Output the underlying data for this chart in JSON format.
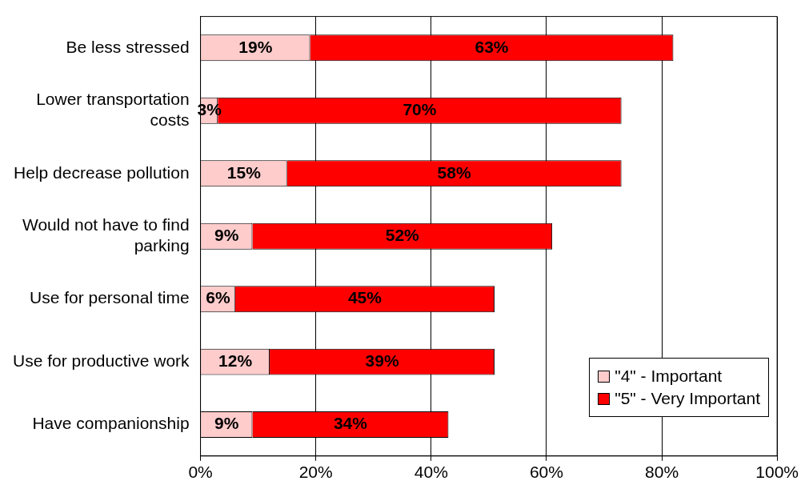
{
  "chart_data": {
    "type": "bar",
    "orientation": "horizontal",
    "stacked": true,
    "categories": [
      "Be less stressed",
      "Lower transportation costs",
      "Help decrease pollution",
      "Would not have to find parking",
      "Use for personal time",
      "Use for productive work",
      "Have companionship"
    ],
    "series": [
      {
        "name": "\"4\" - Important",
        "color": "#ffcccc",
        "values": [
          19,
          3,
          15,
          9,
          6,
          12,
          9
        ],
        "value_labels": [
          "19%",
          "3%",
          "15%",
          "9%",
          "6%",
          "12%",
          "9%"
        ]
      },
      {
        "name": "\"5\" - Very Important",
        "color": "#ff0000",
        "values": [
          63,
          70,
          58,
          52,
          45,
          39,
          34
        ],
        "value_labels": [
          "63%",
          "70%",
          "58%",
          "52%",
          "45%",
          "39%",
          "34%"
        ]
      }
    ],
    "xlim": [
      0,
      100
    ],
    "xticks": [
      {
        "value": 0,
        "label": "0%"
      },
      {
        "value": 20,
        "label": "20%"
      },
      {
        "value": 40,
        "label": "40%"
      },
      {
        "value": 60,
        "label": "60%"
      },
      {
        "value": 80,
        "label": "80%"
      },
      {
        "value": 100,
        "label": "100%"
      }
    ],
    "grid": "x",
    "legend": "bottom right"
  }
}
